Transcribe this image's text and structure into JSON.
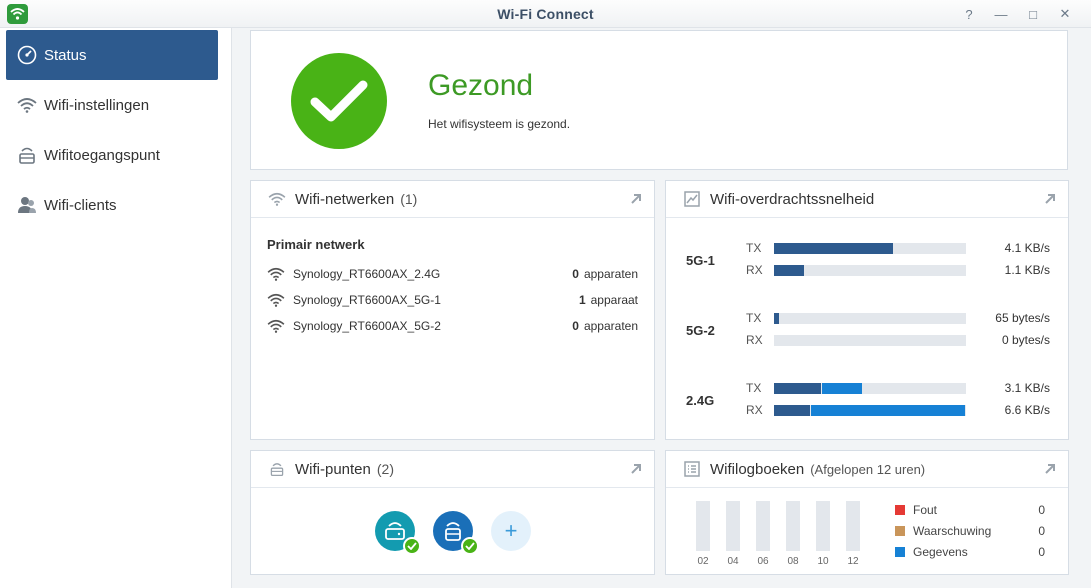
{
  "window": {
    "title": "Wi-Fi Connect",
    "buttons": {
      "help": "?",
      "minimize": "—",
      "maximize": "□",
      "close": "✕"
    }
  },
  "sidebar": {
    "items": [
      {
        "label": "Status",
        "icon": "gauge-icon",
        "active": true
      },
      {
        "label": "Wifi-instellingen",
        "icon": "wifi-icon"
      },
      {
        "label": "Wifitoegangspunt",
        "icon": "router-icon"
      },
      {
        "label": "Wifi-clients",
        "icon": "users-icon"
      }
    ]
  },
  "status": {
    "title": "Gezond",
    "description": "Het wifisysteem is gezond.",
    "color": "#49b316"
  },
  "networks": {
    "title": "Wifi-netwerken",
    "count": "(1)",
    "group": "Primair netwerk",
    "items": [
      {
        "name": "Synology_RT6600AX_2.4G",
        "count": "0",
        "unit": "apparaten"
      },
      {
        "name": "Synology_RT6600AX_5G-1",
        "count": "1",
        "unit": "apparaat"
      },
      {
        "name": "Synology_RT6600AX_5G-2",
        "count": "0",
        "unit": "apparaten"
      }
    ]
  },
  "speed": {
    "title": "Wifi-overdrachtssnelheid",
    "tx_label": "TX",
    "rx_label": "RX",
    "bands": [
      {
        "name": "5G-1",
        "tx": "4.1 KB/s",
        "rx": "1.1 KB/s"
      },
      {
        "name": "5G-2",
        "tx": "65 bytes/s",
        "rx": "0 bytes/s"
      },
      {
        "name": "2.4G",
        "tx": "3.1 KB/s",
        "rx": "6.6 KB/s"
      }
    ]
  },
  "points": {
    "title": "Wifi-punten",
    "count": "(2)",
    "add_label": "+"
  },
  "logs": {
    "title": "Wifilogboeken",
    "period": "(Afgelopen 12 uren)",
    "hours": [
      "02",
      "04",
      "06",
      "08",
      "10",
      "12"
    ],
    "legend": [
      {
        "name": "Fout",
        "value": "0",
        "color": "#e53935"
      },
      {
        "name": "Waarschuwing",
        "value": "0",
        "color": "#c9955a"
      },
      {
        "name": "Gegevens",
        "value": "0",
        "color": "#1681d5"
      }
    ]
  }
}
